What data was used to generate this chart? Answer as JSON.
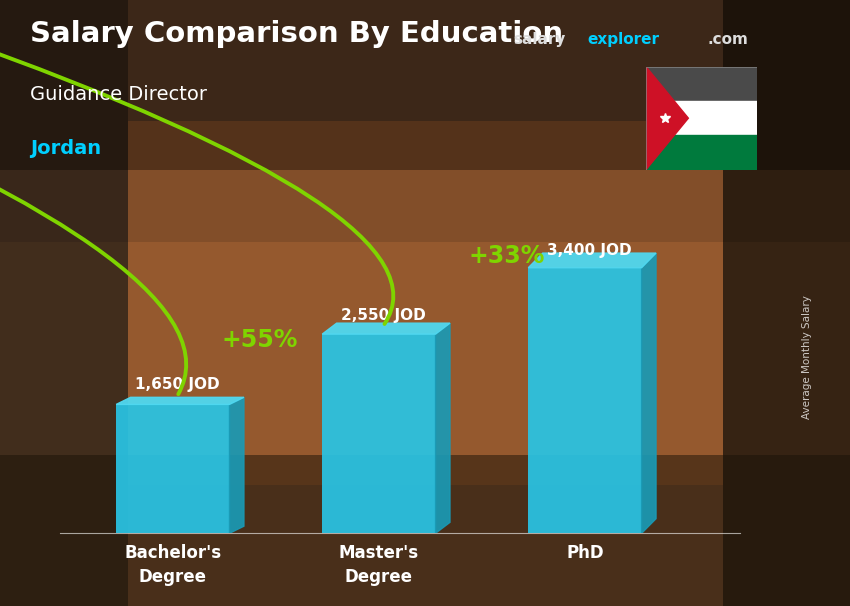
{
  "title_main": "Salary Comparison By Education",
  "subtitle1": "Guidance Director",
  "subtitle2": "Jordan",
  "categories": [
    "Bachelor's\nDegree",
    "Master's\nDegree",
    "PhD"
  ],
  "values": [
    1650,
    2550,
    3400
  ],
  "value_labels": [
    "1,650 JOD",
    "2,550 JOD",
    "3,400 JOD"
  ],
  "pct_labels": [
    "+55%",
    "+33%"
  ],
  "bar_front_color": "#29c5e6",
  "bar_side_color": "#1a9ab5",
  "bar_top_color": "#50d8f0",
  "bg_color": "#8a5a35",
  "text_color_white": "#ffffff",
  "text_color_cyan": "#00cfff",
  "text_color_green": "#7fd400",
  "arrow_color": "#7fd400",
  "ylabel": "Average Monthly Salary",
  "ylim": [
    0,
    4500
  ],
  "bar_width": 0.55,
  "figsize": [
    8.5,
    6.06
  ],
  "dpi": 100,
  "flag_colors": {
    "top": "#4a4a4a",
    "mid": "#ffffff",
    "bot": "#007a3d",
    "tri": "#ce1126"
  }
}
